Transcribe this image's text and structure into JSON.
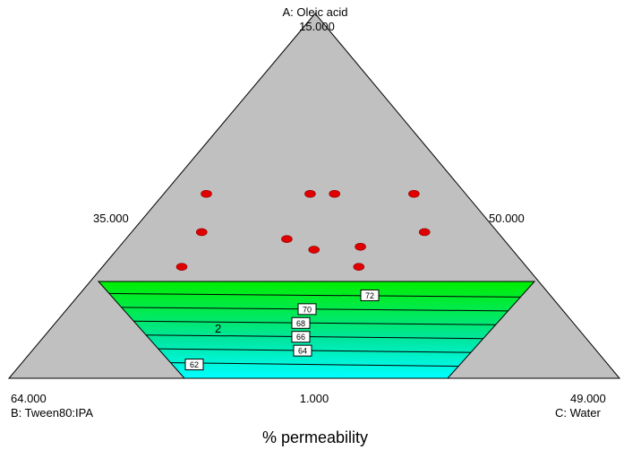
{
  "chart_data": {
    "type": "ternary_contour",
    "title": "% permeability",
    "vertices": {
      "A": {
        "label": "A: Oleic acid",
        "value": "15.000"
      },
      "B": {
        "label": "B: Tween80:IPA",
        "value": "64.000"
      },
      "C": {
        "label": "C: Water",
        "value": "49.000"
      }
    },
    "edge_labels": {
      "left": "35.000",
      "right": "50.000",
      "bottom": "1.000"
    },
    "contour_levels": [
      72,
      70,
      68,
      66,
      64,
      62
    ],
    "contour_labels": [
      "72",
      "70",
      "68",
      "66",
      "64",
      "62"
    ],
    "point_annotations": [
      {
        "label": "2"
      }
    ],
    "design_points": [
      {
        "A": 35.0,
        "B": 1.0,
        "C": 49.0
      },
      {
        "A": 35.0,
        "B": 35.0,
        "C": 15.0
      },
      {
        "A": 35.0,
        "B": 18.0,
        "C": 32.0
      },
      {
        "A": 35.0,
        "B": 14.0,
        "C": 36.0
      },
      {
        "A": 24.5,
        "B": 41.0,
        "C": 19.5
      },
      {
        "A": 24.5,
        "B": 4.5,
        "C": 56.0
      },
      {
        "A": 22.6,
        "B": 28.0,
        "C": 34.4
      },
      {
        "A": 20.5,
        "B": 17.0,
        "C": 47.5
      },
      {
        "A": 19.7,
        "B": 25.0,
        "C": 40.3
      },
      {
        "A": 15.0,
        "B": 49.0,
        "C": 21.0
      },
      {
        "A": 15.0,
        "B": 20.0,
        "C": 50.0
      }
    ],
    "colors": {
      "triangle": "#c0c0c0",
      "contour_top": "#00ee00",
      "contour_bottom": "#00ffff",
      "point": "#e00000"
    }
  }
}
